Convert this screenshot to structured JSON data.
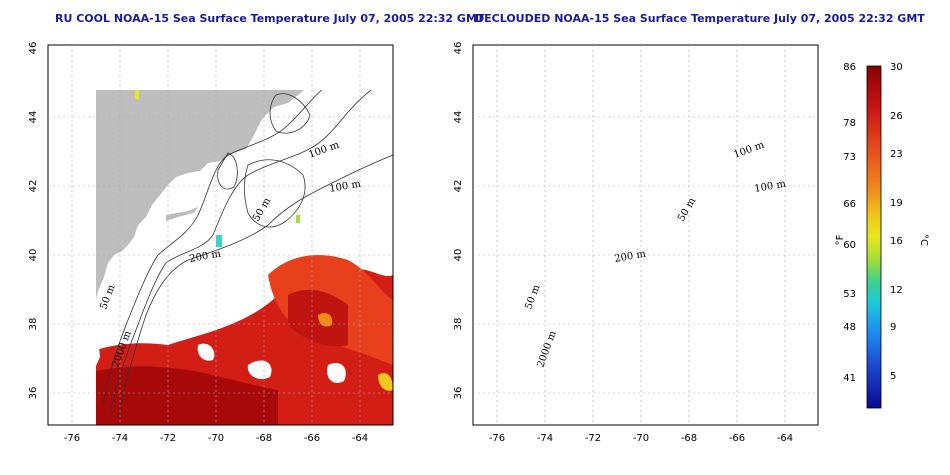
{
  "titles": {
    "left": "RU COOL NOAA-15 Sea Surface Temperature July 07, 2005 22:32 GMT",
    "right": "DECLOUDED NOAA-15 Sea Surface Temperature July 07, 2005 22:32 GMT"
  },
  "axes": {
    "lon_ticks": [
      "-76",
      "-74",
      "-72",
      "-70",
      "-68",
      "-66",
      "-64"
    ],
    "lat_ticks": [
      "46",
      "44",
      "42",
      "40",
      "38",
      "36"
    ]
  },
  "contour_labels": {
    "c100a": "100 m",
    "c100b": "100 m",
    "c50a": "50 m",
    "c200": "200 m",
    "c50b": "50 m",
    "c2000": "2000 m"
  },
  "colorbar": {
    "f_unit": "°F",
    "c_unit": "°C",
    "f_labels": [
      "86",
      "78",
      "73",
      "66",
      "60",
      "53",
      "48",
      "41"
    ],
    "c_labels": [
      "30",
      "26",
      "23",
      "19",
      "16",
      "12",
      "9",
      "5"
    ],
    "colors": [
      "#8a0000",
      "#c81414",
      "#e8501c",
      "#f08a1c",
      "#f0c81c",
      "#e6e61c",
      "#a0dc3c",
      "#3cd28c",
      "#1ec8dc",
      "#1c8cf0",
      "#1c46d2",
      "#0a0a96"
    ]
  }
}
